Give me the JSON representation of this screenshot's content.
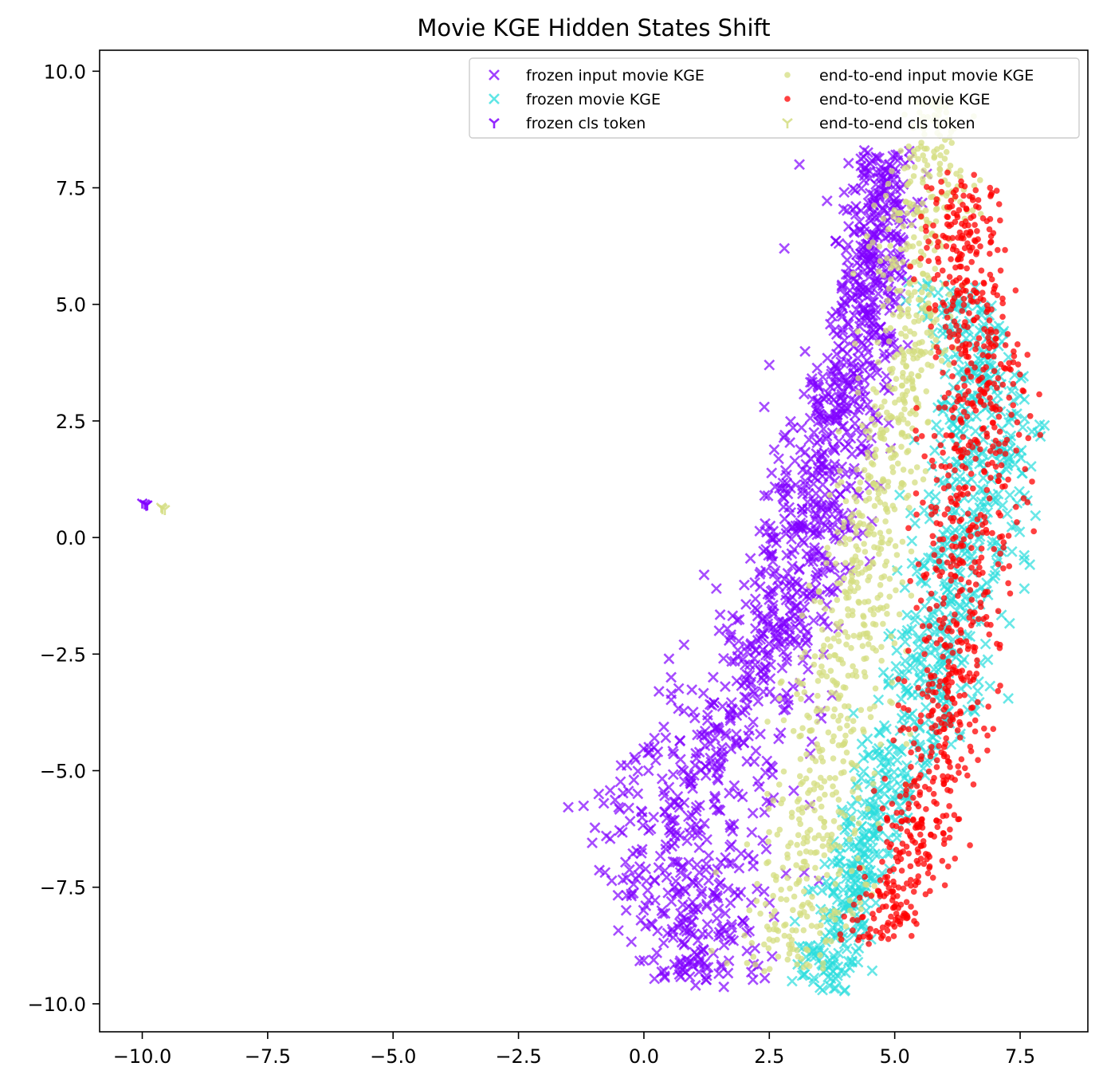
{
  "chart_data": {
    "type": "scatter",
    "title": "Movie KGE Hidden States Shift",
    "xlabel": "",
    "ylabel": "",
    "xlim": [
      -10.85,
      8.85
    ],
    "ylim": [
      -10.6,
      10.45
    ],
    "xticks": [
      -10.0,
      -7.5,
      -5.0,
      -2.5,
      0.0,
      2.5,
      5.0,
      7.5
    ],
    "yticks": [
      -10.0,
      -7.5,
      -5.0,
      -2.5,
      0.0,
      2.5,
      5.0,
      7.5,
      10.0
    ],
    "xtick_labels": [
      "−10.0",
      "−7.5",
      "−5.0",
      "−2.5",
      "0.0",
      "2.5",
      "5.0",
      "7.5"
    ],
    "ytick_labels": [
      "−10.0",
      "−7.5",
      "−5.0",
      "−2.5",
      "0.0",
      "2.5",
      "5.0",
      "7.5",
      "10.0"
    ],
    "grid": false,
    "legend_position": "top-right",
    "legend_columns": 2,
    "series": [
      {
        "name": "frozen input movie KGE",
        "marker": "x",
        "color": "#8000ff",
        "band": {
          "y_top": 8.3,
          "y_bottom": -9.5,
          "left_knots": [
            [
              -9.5,
              0.0
            ],
            [
              -8.0,
              -0.6
            ],
            [
              -6.0,
              -1.2
            ],
            [
              -4.0,
              0.3
            ],
            [
              -2.0,
              1.6
            ],
            [
              0.0,
              2.4
            ],
            [
              2.0,
              2.8
            ],
            [
              4.0,
              3.5
            ],
            [
              6.0,
              4.0
            ],
            [
              8.3,
              4.2
            ]
          ],
          "right_knots": [
            [
              -9.5,
              2.3
            ],
            [
              -8.0,
              2.3
            ],
            [
              -6.0,
              2.8
            ],
            [
              -4.0,
              3.2
            ],
            [
              -2.0,
              3.6
            ],
            [
              0.0,
              4.2
            ],
            [
              2.0,
              4.6
            ],
            [
              4.0,
              5.0
            ],
            [
              6.0,
              5.2
            ],
            [
              8.3,
              5.4
            ]
          ]
        },
        "count": 1250,
        "extra_points": [
          [
            -0.9,
            -5.5
          ],
          [
            -0.8,
            -5.7
          ],
          [
            -0.3,
            -5.8
          ],
          [
            -0.2,
            -5.2
          ],
          [
            0.3,
            -3.3
          ],
          [
            0.5,
            -2.6
          ],
          [
            0.8,
            -2.3
          ],
          [
            1.2,
            -0.8
          ],
          [
            2.5,
            3.7
          ],
          [
            2.8,
            6.2
          ],
          [
            3.1,
            8.0
          ],
          [
            2.4,
            2.8
          ],
          [
            1.5,
            -2.0
          ],
          [
            0.2,
            -4.5
          ]
        ]
      },
      {
        "name": "frozen movie KGE",
        "marker": "x",
        "color": "#2adddd",
        "band": {
          "y_top": 5.5,
          "y_bottom": -9.7,
          "left_knots": [
            [
              -9.7,
              3.0
            ],
            [
              -8.0,
              3.3
            ],
            [
              -6.0,
              4.0
            ],
            [
              -4.0,
              4.6
            ],
            [
              -2.0,
              5.0
            ],
            [
              0.0,
              5.4
            ],
            [
              2.0,
              5.8
            ],
            [
              4.0,
              5.9
            ],
            [
              5.5,
              5.3
            ]
          ],
          "right_knots": [
            [
              -9.7,
              4.2
            ],
            [
              -8.0,
              4.6
            ],
            [
              -6.0,
              5.2
            ],
            [
              -4.0,
              6.6
            ],
            [
              -2.0,
              7.0
            ],
            [
              0.0,
              7.6
            ],
            [
              2.0,
              7.9
            ],
            [
              4.0,
              7.6
            ],
            [
              5.5,
              6.6
            ]
          ]
        },
        "count": 850,
        "extra_points": []
      },
      {
        "name": "frozen cls token",
        "marker": "tri_down",
        "color": "#8000ff",
        "points": [
          [
            -9.95,
            0.72
          ],
          [
            -9.9,
            0.7
          ],
          [
            -10.0,
            0.74
          ],
          [
            -9.92,
            0.69
          ]
        ]
      },
      {
        "name": "end-to-end input movie KGE",
        "marker": "o",
        "color": "#d4dd80",
        "band": {
          "y_top": 9.4,
          "y_bottom": -9.3,
          "left_knots": [
            [
              -9.3,
              1.9
            ],
            [
              -8.0,
              2.0
            ],
            [
              -6.0,
              2.3
            ],
            [
              -4.0,
              2.8
            ],
            [
              -2.0,
              3.3
            ],
            [
              0.0,
              3.8
            ],
            [
              2.0,
              4.2
            ],
            [
              4.0,
              4.6
            ],
            [
              6.0,
              4.6
            ],
            [
              8.0,
              4.8
            ],
            [
              9.4,
              5.4
            ]
          ],
          "right_knots": [
            [
              -9.3,
              3.8
            ],
            [
              -8.0,
              4.2
            ],
            [
              -6.0,
              4.6
            ],
            [
              -4.0,
              4.8
            ],
            [
              -2.0,
              5.0
            ],
            [
              0.0,
              5.2
            ],
            [
              2.0,
              5.6
            ],
            [
              4.0,
              6.0
            ],
            [
              6.0,
              6.2
            ],
            [
              8.0,
              6.6
            ],
            [
              9.4,
              6.2
            ]
          ]
        },
        "count": 950,
        "extra_points": [
          [
            2.4,
            -9.3
          ]
        ]
      },
      {
        "name": "end-to-end movie KGE",
        "marker": "o",
        "color": "#ff0000",
        "band": {
          "y_top": 7.6,
          "y_bottom": -8.7,
          "left_knots": [
            [
              -8.7,
              4.2
            ],
            [
              -8.0,
              4.2
            ],
            [
              -6.0,
              4.8
            ],
            [
              -4.0,
              5.2
            ],
            [
              -2.0,
              5.4
            ],
            [
              0.0,
              5.6
            ],
            [
              2.0,
              5.8
            ],
            [
              4.0,
              6.0
            ],
            [
              6.0,
              5.6
            ],
            [
              7.6,
              5.8
            ]
          ],
          "right_knots": [
            [
              -8.7,
              5.0
            ],
            [
              -8.0,
              5.8
            ],
            [
              -6.0,
              6.2
            ],
            [
              -4.0,
              6.9
            ],
            [
              -2.0,
              7.0
            ],
            [
              0.0,
              7.3
            ],
            [
              2.0,
              7.5
            ],
            [
              4.0,
              7.6
            ],
            [
              6.0,
              7.1
            ],
            [
              7.6,
              6.8
            ]
          ]
        },
        "count": 950,
        "extra_points": [
          [
            7.9,
            2.2
          ],
          [
            7.3,
            -1.2
          ],
          [
            6.5,
            -6.6
          ],
          [
            7.1,
            6.8
          ],
          [
            6.9,
            7.5
          ]
        ]
      },
      {
        "name": "end-to-end cls token",
        "marker": "tri_down",
        "color": "#d4dd80",
        "points": [
          [
            -9.6,
            0.62
          ],
          [
            -9.55,
            0.6
          ],
          [
            -9.62,
            0.65
          ]
        ]
      }
    ]
  }
}
